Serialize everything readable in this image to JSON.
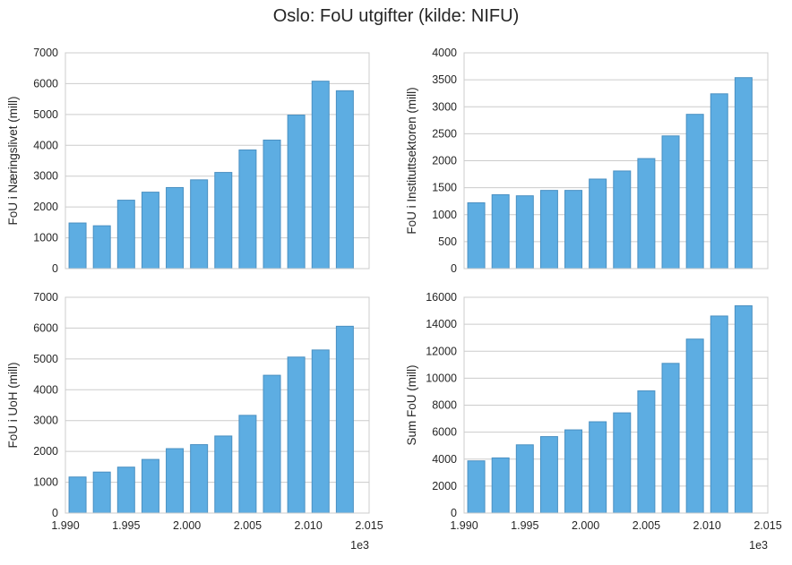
{
  "figure": {
    "title": "Oslo: FoU utgifter (kilde: NIFU)",
    "bar_color": "#5dade2",
    "bar_edge_color": "#4a90c2",
    "grid_color": "#cccccc",
    "axes_edge_color": "#cccccc",
    "x_offset_label": "1e3"
  },
  "chart_data": [
    {
      "type": "bar",
      "ylabel": "FoU i Næringslivet (mill)",
      "xlim": [
        1.99,
        2.015
      ],
      "x_tick_labels": [
        "1.990",
        "1.995",
        "2.000",
        "2.005",
        "2.010",
        "2.015"
      ],
      "show_x_tick_labels": false,
      "ylim": [
        0,
        7000
      ],
      "y_ticks": [
        0,
        1000,
        2000,
        3000,
        4000,
        5000,
        6000,
        7000
      ],
      "grid": true,
      "x": [
        1.991,
        1.993,
        1.995,
        1.997,
        1.999,
        2.001,
        2.003,
        2.005,
        2.007,
        2.009,
        2.011,
        2.013
      ],
      "values": [
        1480,
        1390,
        2220,
        2480,
        2630,
        2880,
        3120,
        3850,
        4170,
        4980,
        6080,
        5770
      ]
    },
    {
      "type": "bar",
      "ylabel": "FoU i Instituttsektoren (mill)",
      "xlim": [
        1.99,
        2.015
      ],
      "x_tick_labels": [
        "1.990",
        "1.995",
        "2.000",
        "2.005",
        "2.010",
        "2.015"
      ],
      "show_x_tick_labels": false,
      "ylim": [
        0,
        4000
      ],
      "y_ticks": [
        0,
        500,
        1000,
        1500,
        2000,
        2500,
        3000,
        3500,
        4000
      ],
      "grid": true,
      "x": [
        1.991,
        1.993,
        1.995,
        1.997,
        1.999,
        2.001,
        2.003,
        2.005,
        2.007,
        2.009,
        2.011,
        2.013
      ],
      "values": [
        1220,
        1370,
        1350,
        1450,
        1450,
        1660,
        1810,
        2040,
        2460,
        2860,
        3240,
        3540
      ]
    },
    {
      "type": "bar",
      "ylabel": "FoU i UoH (mill)",
      "xlim": [
        1.99,
        2.015
      ],
      "x_tick_labels": [
        "1.990",
        "1.995",
        "2.000",
        "2.005",
        "2.010",
        "2.015"
      ],
      "show_x_tick_labels": true,
      "ylim": [
        0,
        7000
      ],
      "y_ticks": [
        0,
        1000,
        2000,
        3000,
        4000,
        5000,
        6000,
        7000
      ],
      "grid": true,
      "x": [
        1.991,
        1.993,
        1.995,
        1.997,
        1.999,
        2.001,
        2.003,
        2.005,
        2.007,
        2.009,
        2.011,
        2.013
      ],
      "values": [
        1170,
        1330,
        1490,
        1740,
        2090,
        2220,
        2500,
        3170,
        4470,
        5060,
        5290,
        6060
      ]
    },
    {
      "type": "bar",
      "ylabel": "Sum FoU (mill)",
      "xlim": [
        1.99,
        2.015
      ],
      "x_tick_labels": [
        "1.990",
        "1.995",
        "2.000",
        "2.005",
        "2.010",
        "2.015"
      ],
      "show_x_tick_labels": true,
      "ylim": [
        0,
        16000
      ],
      "y_ticks": [
        0,
        2000,
        4000,
        6000,
        8000,
        10000,
        12000,
        14000,
        16000
      ],
      "grid": true,
      "x": [
        1.991,
        1.993,
        1.995,
        1.997,
        1.999,
        2.001,
        2.003,
        2.005,
        2.007,
        2.009,
        2.011,
        2.013
      ],
      "values": [
        3870,
        4090,
        5060,
        5670,
        6170,
        6770,
        7430,
        9060,
        11100,
        12900,
        14610,
        15370
      ]
    }
  ]
}
